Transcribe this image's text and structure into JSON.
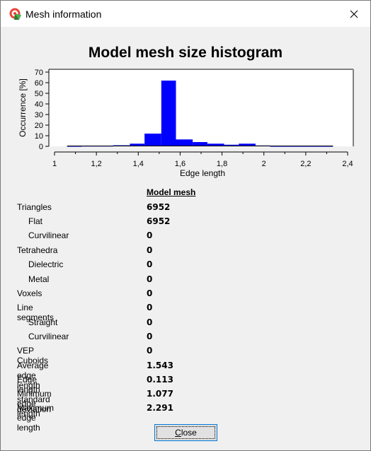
{
  "window": {
    "title": "Mesh information"
  },
  "chart_data": {
    "type": "bar",
    "title": "Model mesh size histogram",
    "xlabel": "Edge length",
    "ylabel": "Occurrence [%]",
    "xlim": [
      1,
      2.4
    ],
    "ylim": [
      0,
      70
    ],
    "x_ticks": [
      "1",
      "1,2",
      "1,4",
      "1,6",
      "1,8",
      "2",
      "2,2",
      "2,4"
    ],
    "y_ticks": [
      "0",
      "10",
      "20",
      "30",
      "40",
      "50",
      "60",
      "70"
    ],
    "bins": [
      {
        "x0": 1.06,
        "x1": 1.13,
        "value": 0.3
      },
      {
        "x0": 1.13,
        "x1": 1.28,
        "value": 0.5
      },
      {
        "x0": 1.28,
        "x1": 1.36,
        "value": 1.0
      },
      {
        "x0": 1.36,
        "x1": 1.43,
        "value": 2.5
      },
      {
        "x0": 1.43,
        "x1": 1.51,
        "value": 12
      },
      {
        "x0": 1.51,
        "x1": 1.58,
        "value": 62
      },
      {
        "x0": 1.58,
        "x1": 1.66,
        "value": 6.5
      },
      {
        "x0": 1.66,
        "x1": 1.73,
        "value": 4
      },
      {
        "x0": 1.73,
        "x1": 1.81,
        "value": 2.5
      },
      {
        "x0": 1.81,
        "x1": 1.88,
        "value": 1.5
      },
      {
        "x0": 1.88,
        "x1": 1.96,
        "value": 2.5
      },
      {
        "x0": 1.96,
        "x1": 2.03,
        "value": 0.8
      },
      {
        "x0": 2.03,
        "x1": 2.33,
        "value": 0.3
      }
    ],
    "color": "#0000ff",
    "grid": false
  },
  "stats": {
    "column_header": "Model mesh",
    "rows": [
      {
        "label": "Triangles",
        "value": "6952"
      },
      {
        "label": "Flat",
        "value": "6952"
      },
      {
        "label": "Curvilinear",
        "value": "0"
      },
      {
        "label": "Tetrahedra",
        "value": "0"
      },
      {
        "label": "Dielectric",
        "value": "0"
      },
      {
        "label": "Metal",
        "value": "0"
      },
      {
        "label": "Voxels",
        "value": "0"
      },
      {
        "label": "Line segments",
        "value": "0"
      },
      {
        "label": "Straight",
        "value": "0"
      },
      {
        "label": "Curvilinear",
        "value": "0"
      },
      {
        "label": "VEP Cuboids",
        "value": "0"
      },
      {
        "label": "Average edge length",
        "value": "1.543"
      },
      {
        "label": "Edge length standard deviation",
        "value": "0.113"
      },
      {
        "label": "Minimum edge length",
        "value": "1.077"
      },
      {
        "label": "Maximum edge length",
        "value": "2.291"
      }
    ]
  },
  "buttons": {
    "close_underlined": "C",
    "close_rest": "lose"
  },
  "icons": {
    "app": "mesh-app-icon",
    "close": "close-icon"
  }
}
